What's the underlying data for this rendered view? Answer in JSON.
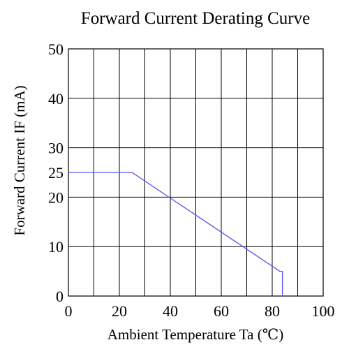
{
  "chart_data": {
    "type": "line",
    "title": "Forward Current Derating Curve",
    "xlabel": "Ambient Temperature Ta (℃)",
    "ylabel": "Forward Current IF (mA)",
    "xlim": [
      0,
      100
    ],
    "ylim": [
      0,
      50
    ],
    "x_ticks": [
      0,
      10,
      20,
      30,
      40,
      50,
      60,
      70,
      80,
      90,
      100
    ],
    "x_tick_labels": [
      "0",
      "20",
      "40",
      "60",
      "80",
      "100"
    ],
    "x_tick_label_values": [
      0,
      20,
      40,
      60,
      80,
      100
    ],
    "y_ticks": [
      0,
      10,
      20,
      30,
      40,
      50
    ],
    "y_tick_labels": [
      "0",
      "10",
      "20",
      "25",
      "30",
      "40",
      "50"
    ],
    "y_tick_label_values": [
      0,
      10,
      20,
      25,
      30,
      40,
      50
    ],
    "grid": true,
    "series": [
      {
        "color": "#5555ee",
        "points": [
          {
            "x": 0,
            "y": 25
          },
          {
            "x": 25,
            "y": 25
          },
          {
            "x": 83,
            "y": 5
          },
          {
            "x": 84,
            "y": 5
          },
          {
            "x": 84,
            "y": 0
          }
        ]
      }
    ]
  }
}
